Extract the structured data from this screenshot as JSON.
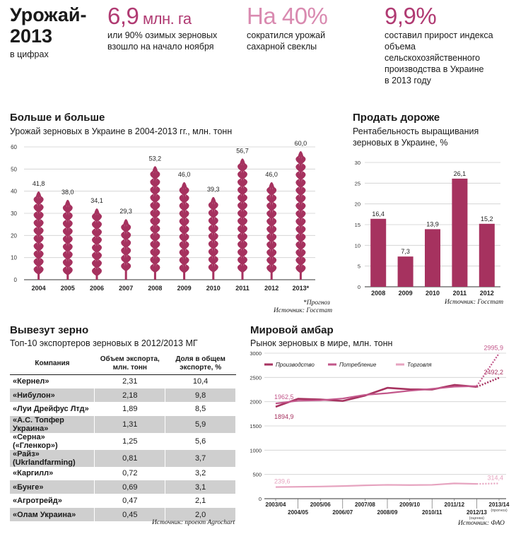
{
  "header": {
    "title_line1": "Урожай-",
    "title_line2": "2013",
    "subtitle": "в цифрах"
  },
  "stats": [
    {
      "value": "6,9",
      "unit": " млн. га",
      "text": [
        "или 90% озимых зерновых",
        "взошло на начало ноября"
      ]
    },
    {
      "value": "На 40%",
      "unit": "",
      "text": [
        "сократился урожай",
        "сахарной свеклы"
      ]
    },
    {
      "value": "9,9%",
      "unit": "",
      "text": [
        "составил прирост индекса",
        "объема сельскохозяйственного",
        "производства в Украине",
        "в 2013 году"
      ]
    }
  ],
  "colors": {
    "accent": "#a6325f",
    "accent_light": "#e6a3bf",
    "grid": "#cfcfcf"
  },
  "sections": {
    "harvest": {
      "title": "Больше и больше",
      "subtitle": "Урожай зерновых в Украине в 2004-2013 гг., млн. тонн",
      "note": "*Прогноз",
      "source": "Источник: Госстат"
    },
    "profit": {
      "title": "Продать дороже",
      "subtitle_line1": "Рентабельность выращивания",
      "subtitle_line2": "зерновых в Украине, %",
      "source": "Источник: Госстат"
    },
    "export": {
      "title": "Вывезут зерно",
      "subtitle": "Топ-10 экспортеров зерновых в 2012/2013 МГ",
      "source": "Источник: проект Agrochart"
    },
    "world": {
      "title": "Мировой амбар",
      "subtitle": "Рынок зерновых в мире, млн. тонн",
      "source": "Источник: ФАО"
    }
  },
  "chart_data": [
    {
      "type": "bar",
      "title": "Больше и больше",
      "subtitle": "Урожай зерновых в Украине в 2004-2013 гг., млн. тонн",
      "categories": [
        "2004",
        "2005",
        "2006",
        "2007",
        "2008",
        "2009",
        "2010",
        "2011",
        "2012",
        "2013*"
      ],
      "values": [
        41.8,
        38.0,
        34.1,
        29.3,
        53.2,
        46.0,
        39.3,
        56.7,
        46.0,
        60.0
      ],
      "value_labels": [
        "41,8",
        "38,0",
        "34,1",
        "29,3",
        "53,2",
        "46,0",
        "39,3",
        "56,7",
        "46,0",
        "60,0"
      ],
      "yticks": [
        0,
        10,
        20,
        30,
        40,
        50,
        60
      ],
      "ylim": [
        0,
        60
      ],
      "grid": true
    },
    {
      "type": "bar",
      "title": "Продать дороже",
      "subtitle": "Рентабельность выращивания зерновых в Украине, %",
      "categories": [
        "2008",
        "2009",
        "2010",
        "2011",
        "2012"
      ],
      "values": [
        16.4,
        7.3,
        13.9,
        26.1,
        15.2
      ],
      "value_labels": [
        "16,4",
        "7,3",
        "13,9",
        "26,1",
        "15,2"
      ],
      "yticks": [
        0,
        5,
        10,
        15,
        20,
        25,
        30
      ],
      "ylim": [
        0,
        30
      ],
      "grid": true
    },
    {
      "type": "table",
      "title": "Вывезут зерно",
      "subtitle": "Топ-10 экспортеров зерновых в 2012/2013 МГ",
      "columns": [
        "Компания",
        "Объем экспорта, млн. тонн",
        "Доля в общем экспорте, %"
      ],
      "rows": [
        [
          "«Кернел»",
          "2,31",
          "10,4"
        ],
        [
          "«Нибулон»",
          "2,18",
          "9,8"
        ],
        [
          "«Луи Дрейфус Лтд»",
          "1,89",
          "8,5"
        ],
        [
          "«А.С. Топфер Украина»",
          "1,31",
          "5,9"
        ],
        [
          "«Серна» («Гленкор»)",
          "1,25",
          "5,6"
        ],
        [
          "«Райз» (Ukrlandfarming)",
          "0,81",
          "3,7"
        ],
        [
          "«Каргилл»",
          "0,72",
          "3,2"
        ],
        [
          "«Бунге»",
          "0,69",
          "3,1"
        ],
        [
          "«Агротрейд»",
          "0,47",
          "2,1"
        ],
        [
          "«Олам Украина»",
          "0,45",
          "2,0"
        ]
      ]
    },
    {
      "type": "line",
      "title": "Мировой амбар",
      "subtitle": "Рынок зерновых в мире, млн. тонн",
      "x": [
        "2003/04",
        "2004/05",
        "2005/06",
        "2006/07",
        "2007/08",
        "2008/09",
        "2009/10",
        "2010/11",
        "2011/12",
        "2012/13",
        "2013/14"
      ],
      "x_notes": {
        "2012/13": "(оценка)",
        "2013/14": "(прогноз)"
      },
      "yticks": [
        0,
        500,
        1000,
        1500,
        2000,
        2500,
        3000
      ],
      "ylim": [
        0,
        3000
      ],
      "legend": "top-left",
      "series": [
        {
          "name": "Производство",
          "values": [
            1894.9,
            2060,
            2045,
            2015,
            2125,
            2285,
            2255,
            2250,
            2345,
            2305,
            2492.2
          ],
          "labels": {
            "0": "1894,9",
            "10": "2492,2"
          }
        },
        {
          "name": "Потребление",
          "values": [
            1962.5,
            2020,
            2030,
            2065,
            2140,
            2175,
            2225,
            2265,
            2310,
            2320,
            2995.9
          ],
          "labels": {
            "0": "1962,5",
            "10": "2995,9"
          }
        },
        {
          "name": "Торговля",
          "values": [
            239.6,
            245,
            250,
            260,
            275,
            285,
            280,
            285,
            315,
            305,
            314.4
          ],
          "labels": {
            "0": "239,6",
            "10": "314,4"
          }
        }
      ]
    }
  ]
}
